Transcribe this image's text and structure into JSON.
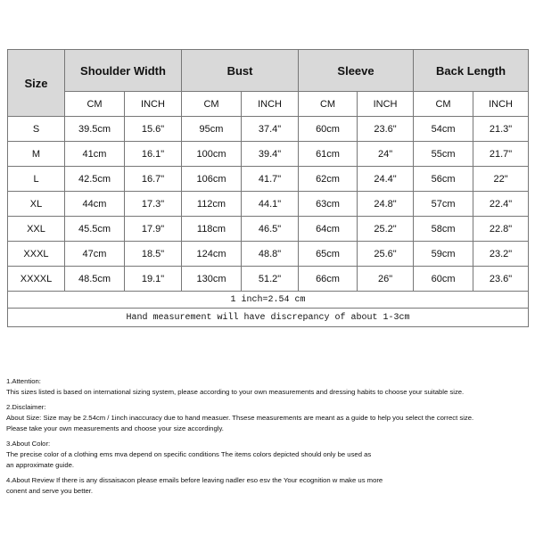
{
  "table": {
    "size_header": "Size",
    "groups": [
      "Shoulder Width",
      "Bust",
      "Sleeve",
      "Back Length"
    ],
    "units": [
      "CM",
      "INCH",
      "CM",
      "INCH",
      "CM",
      "INCH",
      "CM",
      "INCH"
    ],
    "rows": [
      [
        "S",
        "39.5cm",
        "15.6\"",
        "95cm",
        "37.4\"",
        "60cm",
        "23.6\"",
        "54cm",
        "21.3\""
      ],
      [
        "M",
        "41cm",
        "16.1\"",
        "100cm",
        "39.4\"",
        "61cm",
        "24\"",
        "55cm",
        "21.7\""
      ],
      [
        "L",
        "42.5cm",
        "16.7\"",
        "106cm",
        "41.7\"",
        "62cm",
        "24.4\"",
        "56cm",
        "22\""
      ],
      [
        "XL",
        "44cm",
        "17.3\"",
        "112cm",
        "44.1\"",
        "63cm",
        "24.8\"",
        "57cm",
        "22.4\""
      ],
      [
        "XXL",
        "45.5cm",
        "17.9\"",
        "118cm",
        "46.5\"",
        "64cm",
        "25.2\"",
        "58cm",
        "22.8\""
      ],
      [
        "XXXL",
        "47cm",
        "18.5\"",
        "124cm",
        "48.8\"",
        "65cm",
        "25.6\"",
        "59cm",
        "23.2\""
      ],
      [
        "XXXXL",
        "48.5cm",
        "19.1\"",
        "130cm",
        "51.2\"",
        "66cm",
        "26\"",
        "60cm",
        "23.6\""
      ]
    ],
    "footnotes": [
      "1 inch=2.54 cm",
      "Hand measurement will have discrepancy of about 1-3cm"
    ]
  },
  "notes": [
    [
      "1.Attention:",
      "This sizes listed is based on international sizing system, please according to your own measurements and dressing habits to choose your suitable size."
    ],
    [
      "2.Disclaimer:",
      "About Size: Size may be 2.54cm / 1inch inaccuracy due to hand measuer. Thsese measurements are meant as a guide to help you select the correct size.",
      "Please take your own measurements and choose your size accordingly."
    ],
    [
      "3.About Color:",
      "The precise color of a clothing ems mva depend on specific conditions The items colors depicted should only be used as",
      "an approximate guide."
    ],
    [
      "4.About Review If there is any dissaisacon please emails before leaving nadler eso esv the Your ecognition w make us more",
      "conent and serve you better."
    ]
  ]
}
